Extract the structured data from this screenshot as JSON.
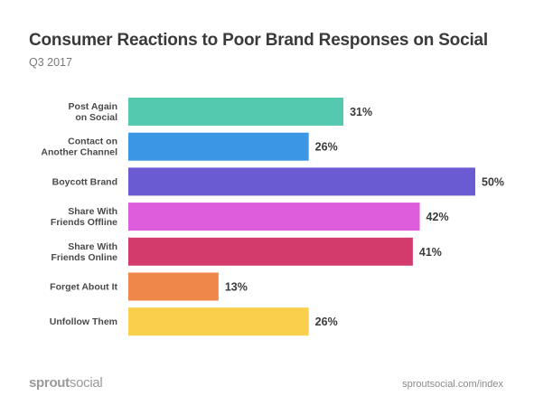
{
  "title": "Consumer Reactions to Poor Brand Responses on Social",
  "subtitle": "Q3 2017",
  "brand": {
    "part1": "sprout",
    "part2": "social"
  },
  "url": "sproutsocial.com/index",
  "chart_data": {
    "type": "bar",
    "orientation": "horizontal",
    "title": "Consumer Reactions to Poor Brand Responses on Social",
    "subtitle": "Q3 2017",
    "categories": [
      [
        "Post Again",
        "on Social"
      ],
      [
        "Contact on",
        "Another Channel"
      ],
      [
        "Boycott Brand"
      ],
      [
        "Share With",
        "Friends Offline"
      ],
      [
        "Share With",
        "Friends Online"
      ],
      [
        "Forget About It"
      ],
      [
        "Unfollow Them"
      ]
    ],
    "values": [
      31,
      26,
      50,
      42,
      41,
      13,
      26
    ],
    "value_labels": [
      "31%",
      "26%",
      "50%",
      "42%",
      "41%",
      "13%",
      "26%"
    ],
    "colors": [
      "#55c8b0",
      "#3b97e6",
      "#6a5bd2",
      "#dd5ddd",
      "#d23b6c",
      "#f0874a",
      "#f9cf4b"
    ],
    "xlim": [
      0,
      50
    ],
    "grid": false
  }
}
